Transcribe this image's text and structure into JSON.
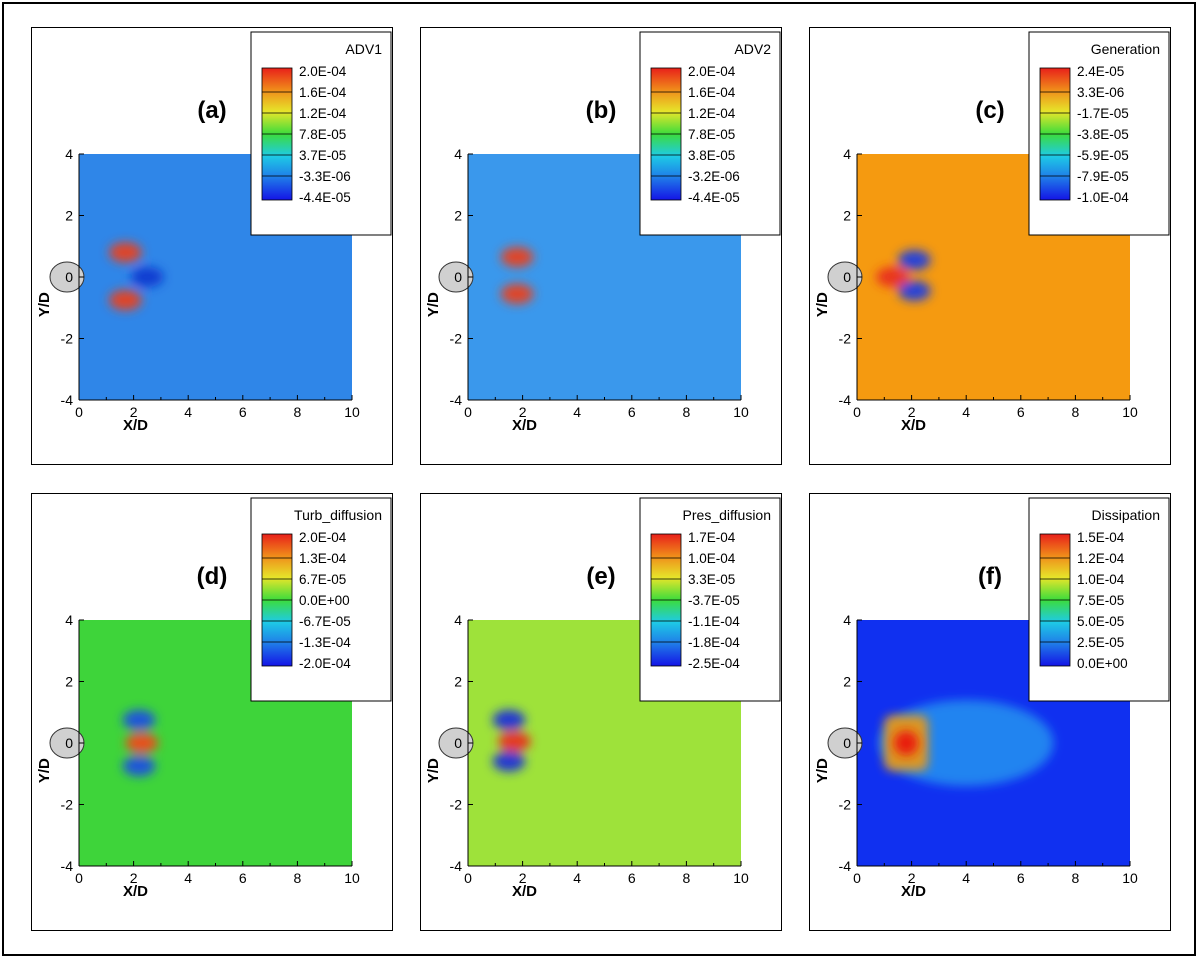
{
  "chart_data": [
    {
      "type": "heatmap",
      "panel": "(a)",
      "legend_title": "ADV1",
      "legend_levels": [
        "2.0E-04",
        "1.6E-04",
        "1.2E-04",
        "7.8E-05",
        "3.7E-05",
        "-3.3E-06",
        "-4.4E-05"
      ],
      "xlabel": "X/D",
      "ylabel": "Y/D",
      "xlim": [
        0,
        10
      ],
      "ylim": [
        -4,
        4
      ],
      "xticks": [
        "0",
        "2",
        "4",
        "6",
        "8",
        "10"
      ],
      "yticks": [
        "4",
        "2",
        "0",
        "-2",
        "-4"
      ],
      "background": "#2f86e8",
      "features": [
        {
          "x": 1.7,
          "y": 0.8,
          "color": "#e84020"
        },
        {
          "x": 1.7,
          "y": -0.75,
          "color": "#e84020"
        },
        {
          "x": 2.5,
          "y": 0,
          "color": "#0a3ad0"
        }
      ]
    },
    {
      "type": "heatmap",
      "panel": "(b)",
      "legend_title": "ADV2",
      "legend_levels": [
        "2.0E-04",
        "1.6E-04",
        "1.2E-04",
        "7.8E-05",
        "3.8E-05",
        "-3.2E-06",
        "-4.4E-05"
      ],
      "xlabel": "X/D",
      "ylabel": "Y/D",
      "xlim": [
        0,
        10
      ],
      "ylim": [
        -4,
        4
      ],
      "xticks": [
        "0",
        "2",
        "4",
        "6",
        "8",
        "10"
      ],
      "yticks": [
        "4",
        "2",
        "0",
        "-2",
        "-4"
      ],
      "background": "#3a98ec",
      "features": [
        {
          "x": 1.8,
          "y": 0.65,
          "color": "#e84020"
        },
        {
          "x": 1.8,
          "y": -0.55,
          "color": "#e84020"
        }
      ]
    },
    {
      "type": "heatmap",
      "panel": "(c)",
      "legend_title": "Generation",
      "legend_levels": [
        "2.4E-05",
        "3.3E-06",
        "-1.7E-05",
        "-3.8E-05",
        "-5.9E-05",
        "-7.9E-05",
        "-1.0E-04"
      ],
      "xlabel": "X/D",
      "ylabel": "Y/D",
      "xlim": [
        0,
        10
      ],
      "ylim": [
        -4,
        4
      ],
      "xticks": [
        "0",
        "2",
        "4",
        "6",
        "8",
        "10"
      ],
      "yticks": [
        "4",
        "2",
        "0",
        "-2",
        "-4"
      ],
      "background": "#f59a10",
      "features": [
        {
          "x": 2.1,
          "y": 0.55,
          "color": "#1a3ee0"
        },
        {
          "x": 2.1,
          "y": -0.45,
          "color": "#1a3ee0"
        },
        {
          "x": 1.3,
          "y": 0,
          "color": "#e83020"
        }
      ]
    },
    {
      "type": "heatmap",
      "panel": "(d)",
      "legend_title": "Turb_diffusion",
      "legend_levels": [
        "2.0E-04",
        "1.3E-04",
        "6.7E-05",
        "0.0E+00",
        "-6.7E-05",
        "-1.3E-04",
        "-2.0E-04"
      ],
      "xlabel": "X/D",
      "ylabel": "Y/D",
      "xlim": [
        0,
        10
      ],
      "ylim": [
        -4,
        4
      ],
      "xticks": [
        "0",
        "2",
        "4",
        "6",
        "8",
        "10"
      ],
      "yticks": [
        "4",
        "2",
        "0",
        "-2",
        "-4"
      ],
      "background": "#3ed43a",
      "features": [
        {
          "x": 2.3,
          "y": 0,
          "color": "#f04a20"
        },
        {
          "x": 2.2,
          "y": 0.75,
          "color": "#2050e0"
        },
        {
          "x": 2.2,
          "y": -0.75,
          "color": "#2050e0"
        }
      ]
    },
    {
      "type": "heatmap",
      "panel": "(e)",
      "legend_title": "Pres_diffusion",
      "legend_levels": [
        "1.7E-04",
        "1.0E-04",
        "3.3E-05",
        "-3.7E-05",
        "-1.1E-04",
        "-1.8E-04",
        "-2.5E-04"
      ],
      "xlabel": "X/D",
      "ylabel": "Y/D",
      "xlim": [
        0,
        10
      ],
      "ylim": [
        -4,
        4
      ],
      "xticks": [
        "0",
        "2",
        "4",
        "6",
        "8",
        "10"
      ],
      "yticks": [
        "4",
        "2",
        "0",
        "-2",
        "-4"
      ],
      "background": "#9ee23a",
      "features": [
        {
          "x": 1.5,
          "y": 0.75,
          "color": "#1a30d8"
        },
        {
          "x": 1.5,
          "y": -0.6,
          "color": "#1a30d8"
        },
        {
          "x": 1.7,
          "y": 0.05,
          "color": "#e83020"
        }
      ]
    },
    {
      "type": "heatmap",
      "panel": "(f)",
      "legend_title": "Dissipation",
      "legend_levels": [
        "1.5E-04",
        "1.2E-04",
        "1.0E-04",
        "7.5E-05",
        "5.0E-05",
        "2.5E-05",
        "0.0E+00"
      ],
      "xlabel": "X/D",
      "ylabel": "Y/D",
      "xlim": [
        0,
        10
      ],
      "ylim": [
        -4,
        4
      ],
      "xticks": [
        "0",
        "2",
        "4",
        "6",
        "8",
        "10"
      ],
      "yticks": [
        "4",
        "2",
        "0",
        "-2",
        "-4"
      ],
      "background": "#1030f0",
      "features": [
        {
          "x": 1.8,
          "y": 0,
          "color": "#e81c10"
        },
        {
          "x": 4.0,
          "y": 0,
          "color": "#30c8f0"
        }
      ]
    }
  ]
}
